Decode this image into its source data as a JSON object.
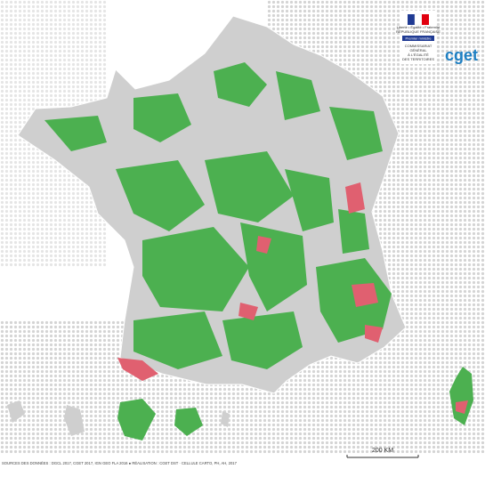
{
  "logo": {
    "motto": "Liberté • Égalité • Fraternité",
    "republic": "RÉPUBLIQUE FRANÇAISE",
    "ministry": "Premier ministre",
    "agency_lines": [
      "COMMISSARIAT",
      "GÉNÉRAL",
      "À L'ÉGALITÉ",
      "DES TERRITOIRES"
    ],
    "brand": "cget"
  },
  "scale_label": "200 KM",
  "sources": "SOURCES DES DONNÉES : DGCL 2017, CGET 2017, IGN GEO FLA 2016 ● RÉALISATION : CGET DST · CELLULE CARTO, PH, AH, 2017"
}
